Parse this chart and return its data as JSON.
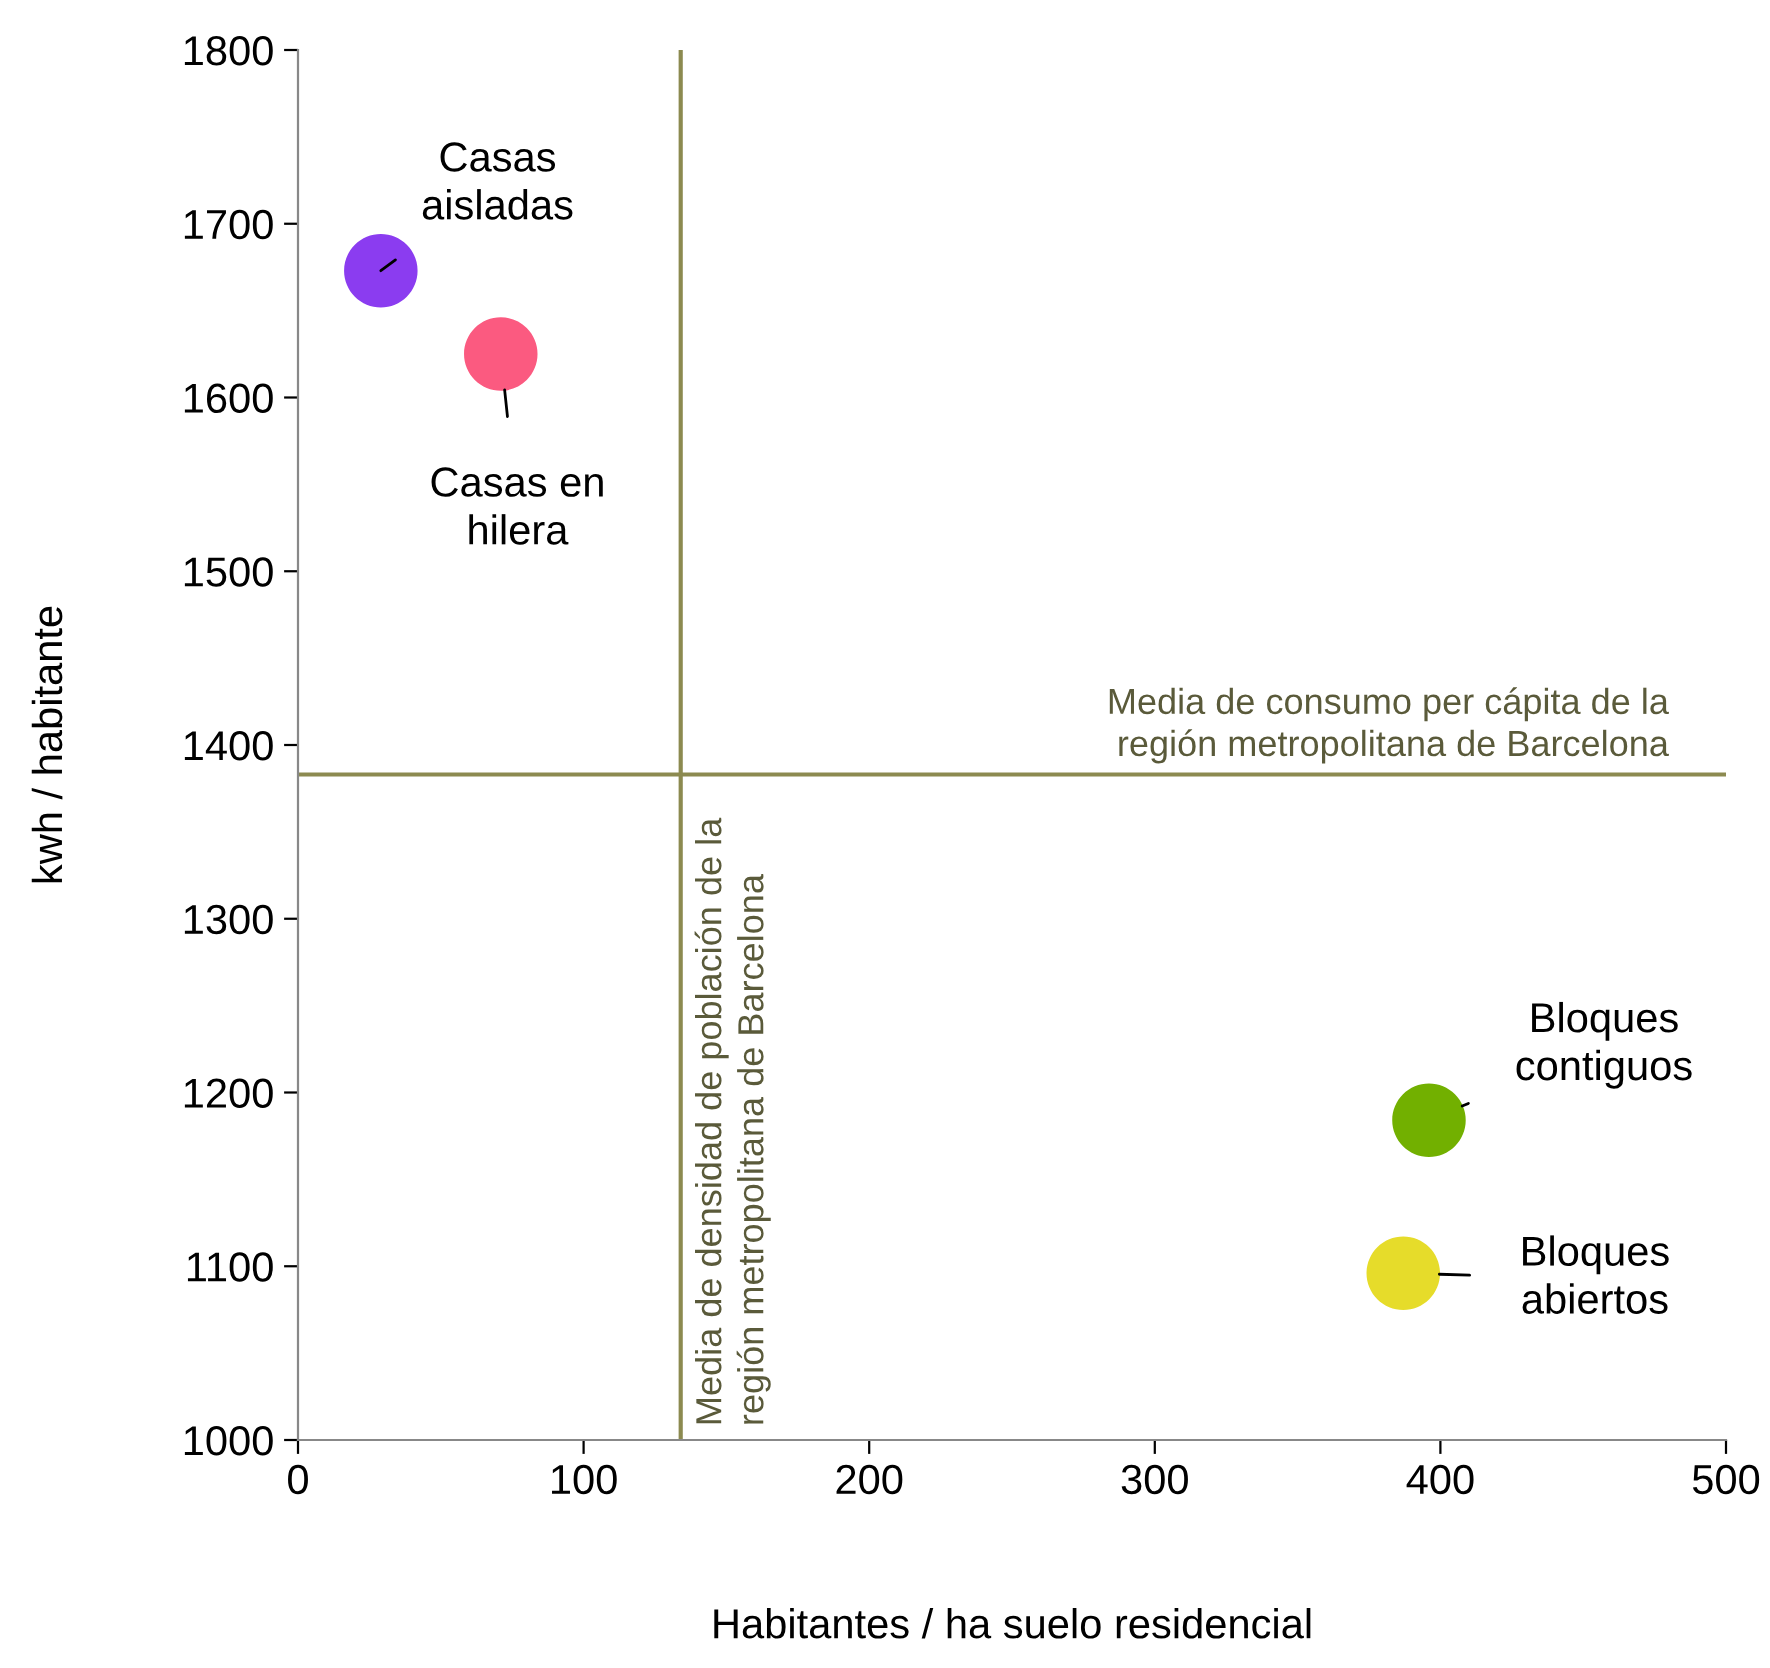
{
  "chart_data": {
    "type": "scatter",
    "xlabel": "Habitantes / ha suelo residencial",
    "ylabel": "kwh / habitante",
    "x": [
      29,
      71,
      396,
      387
    ],
    "values": [
      1673,
      1625,
      1184,
      1096
    ],
    "colors": [
      "#8b3cf0",
      "#fb5a80",
      "#72b000",
      "#e6dc2a"
    ],
    "marker": "circle",
    "grid": false,
    "legend": false,
    "xlim": [
      0,
      500
    ],
    "xticks": [
      0,
      100,
      200,
      300,
      400,
      500
    ],
    "ylim": [
      1000,
      1800
    ],
    "yticks": [
      1000,
      1100,
      1200,
      1300,
      1400,
      1500,
      1600,
      1700,
      1800
    ],
    "annotations": [
      {
        "text": "Casas\naisladas",
        "x": 29,
        "y": 1673
      },
      {
        "text": "Casas en\nhilera",
        "x": 71,
        "y": 1625
      },
      {
        "text": "Bloques\ncontiguos",
        "x": 396,
        "y": 1184
      },
      {
        "text": "Bloques\nabiertos",
        "x": 387,
        "y": 1096
      }
    ],
    "ref_lines": [
      {
        "axis": "y",
        "value": 1383,
        "label": "Media de consumo per cápita de la\nregión metropolitana de Barcelona",
        "color": "#8c8a50"
      },
      {
        "axis": "x",
        "value": 134,
        "label": "Media de densidad de población de la\nregión metropolitana de Barcelona",
        "color": "#8c8a50"
      }
    ]
  }
}
